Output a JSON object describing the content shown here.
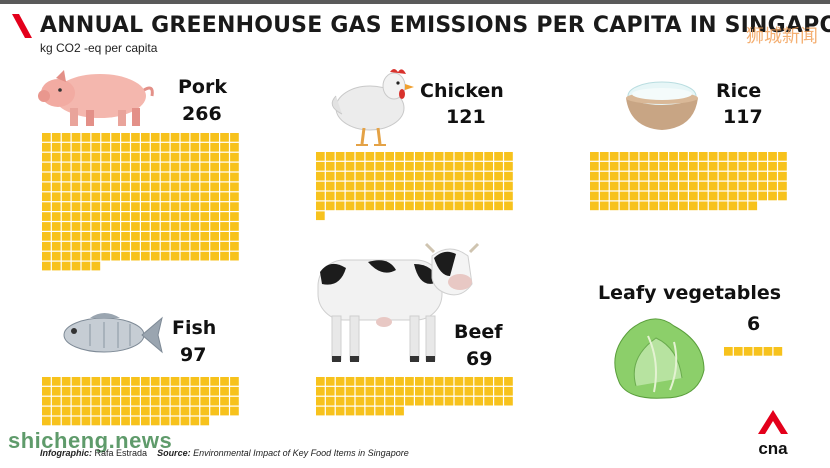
{
  "title": "ANNUAL GREENHOUSE GAS EMISSIONS PER CAPITA IN SINGAPORE",
  "subtitle": "kg CO2 -eq per capita",
  "watermark": "狮城新闻",
  "site_watermark": "shicheng.news",
  "credit": {
    "infographic_label": "Infographic:",
    "infographic_value": "Rafa Estrada",
    "source_label": "Source:",
    "source_value": "Environmental Impact of Key Food Items in Singapore"
  },
  "brand": {
    "logo_text": "cna",
    "accent": "#e3001b",
    "square_color": "#f7c21c"
  },
  "icons": [
    "pig-icon",
    "chicken-icon",
    "rice-bowl-icon",
    "fish-icon",
    "cow-icon",
    "lettuce-icon"
  ],
  "chart_data": {
    "type": "bar",
    "title": "ANNUAL GREENHOUSE GAS EMISSIONS PER CAPITA IN SINGAPORE",
    "ylabel": "kg CO2 -eq per capita",
    "categories": [
      "Pork",
      "Chicken",
      "Rice",
      "Fish",
      "Beef",
      "Leafy vegetables"
    ],
    "values": [
      266,
      121,
      117,
      97,
      69,
      6
    ]
  },
  "items": [
    {
      "label": "Pork",
      "value": "266"
    },
    {
      "label": "Chicken",
      "value": "121"
    },
    {
      "label": "Rice",
      "value": "117"
    },
    {
      "label": "Fish",
      "value": "97"
    },
    {
      "label": "Beef",
      "value": "69"
    },
    {
      "label": "Leafy vegetables",
      "value": "6"
    }
  ]
}
